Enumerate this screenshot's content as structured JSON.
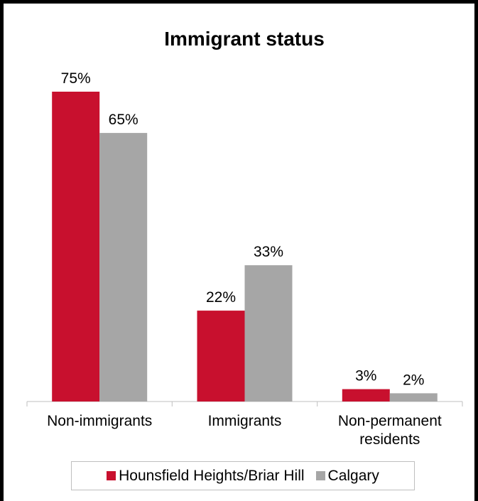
{
  "chart_data": {
    "type": "bar",
    "title": "Immigrant status",
    "categories": [
      "Non-immigrants",
      "Immigrants",
      "Non-permanent residents"
    ],
    "category_lines": [
      [
        "Non-immigrants"
      ],
      [
        "Immigrants"
      ],
      [
        "Non-permanent",
        "residents"
      ]
    ],
    "series": [
      {
        "name": "Hounsfield Heights/Briar Hill",
        "values": [
          75,
          22,
          3
        ],
        "labels": [
          "75%",
          "22%",
          "3%"
        ],
        "color": "#c8102e"
      },
      {
        "name": "Calgary",
        "values": [
          65,
          33,
          2
        ],
        "labels": [
          "65%",
          "33%",
          "2%"
        ],
        "color": "#a6a6a6"
      }
    ],
    "ylim": [
      0,
      75
    ],
    "grid": false,
    "legend": "bottom"
  }
}
